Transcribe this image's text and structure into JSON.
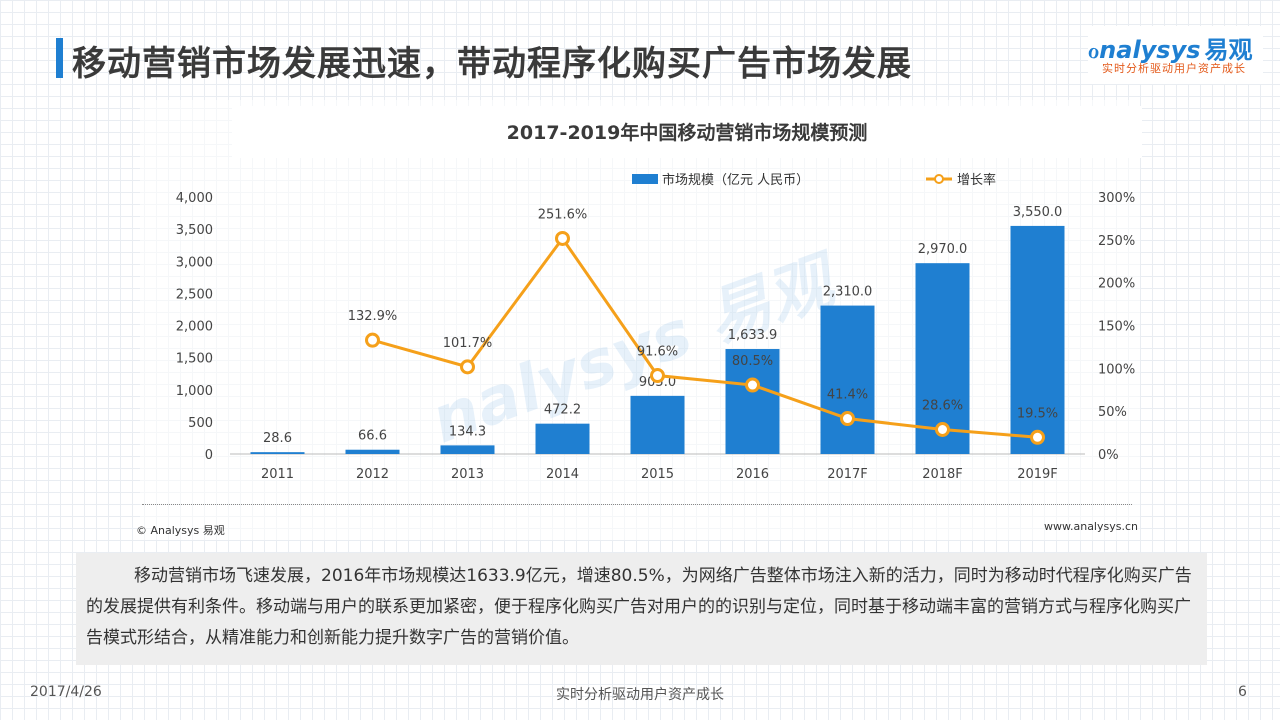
{
  "header": {
    "title": "移动营销市场发展迅速，带动程序化购买广告市场发展",
    "accent_color": "#1f7fd1"
  },
  "logo": {
    "main": "nalysys",
    "main_cn": "易观",
    "tagline": "实时分析驱动用户资产成长"
  },
  "watermark": "nalysys 易观",
  "chart_data": {
    "type": "bar",
    "title": "2017-2019年中国移动营销市场规模预测",
    "categories": [
      "2011",
      "2012",
      "2013",
      "2014",
      "2015",
      "2016",
      "2017F",
      "2018F",
      "2019F"
    ],
    "series": [
      {
        "name": "市场规模（亿元 人民币）",
        "type": "bar",
        "axis": "left",
        "color": "#1f7fd1",
        "values": [
          28.6,
          66.6,
          134.3,
          472.2,
          905.0,
          1633.9,
          2310.0,
          2970.0,
          3550.0
        ],
        "labels": [
          "28.6",
          "66.6",
          "134.3",
          "472.2",
          "905.0",
          "1,633.9",
          "2,310.0",
          "2,970.0",
          "3,550.0"
        ]
      },
      {
        "name": "增长率",
        "type": "line",
        "axis": "right",
        "color": "#f5a01a",
        "values": [
          null,
          132.9,
          101.7,
          251.6,
          91.6,
          80.5,
          41.4,
          28.6,
          19.5
        ],
        "labels": [
          "",
          "132.9%",
          "101.7%",
          "251.6%",
          "91.6%",
          "80.5%",
          "41.4%",
          "28.6%",
          "19.5%"
        ]
      }
    ],
    "ylim_left": [
      0,
      4000
    ],
    "yticks_left": [
      "0",
      "500",
      "1,000",
      "1,500",
      "2,000",
      "2,500",
      "3,000",
      "3,500",
      "4,000"
    ],
    "ylim_right": [
      0,
      300
    ],
    "yticks_right": [
      "0%",
      "50%",
      "100%",
      "150%",
      "200%",
      "250%",
      "300%"
    ],
    "legend_position": "top-right",
    "grid": false
  },
  "chart_footer": {
    "copyright": "© Analysys 易观",
    "website": "www.analysys.cn"
  },
  "description": "移动营销市场飞速发展，2016年市场规模达1633.9亿元，增速80.5%，为网络广告整体市场注入新的活力，同时为移动时代程序化购买广告的发展提供有利条件。移动端与用户的联系更加紧密，便于程序化购买广告对用户的的识别与定位，同时基于移动端丰富的营销方式与程序化购买广告模式形结合，从精准能力和创新能力提升数字广告的营销价值。",
  "footer": {
    "date": "2017/4/26",
    "center": "实时分析驱动用户资产成长",
    "page": "6"
  }
}
